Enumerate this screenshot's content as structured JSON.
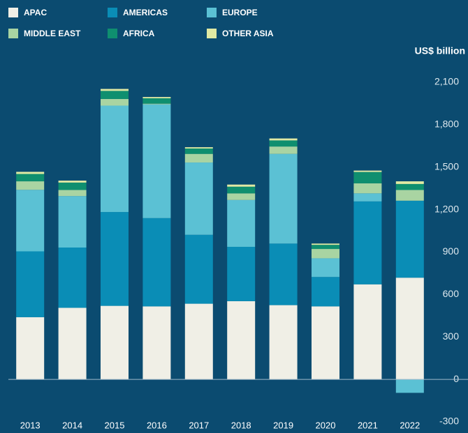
{
  "chart_data": {
    "type": "stacked_bar",
    "y_axis_label": "US$ billion",
    "categories": [
      "2013",
      "2014",
      "2015",
      "2016",
      "2017",
      "2018",
      "2019",
      "2020",
      "2021",
      "2022"
    ],
    "series": [
      {
        "name": "APAC",
        "color": "#f0efe6",
        "values": [
          440,
          506,
          520,
          516,
          535,
          553,
          525,
          516,
          672,
          719
        ]
      },
      {
        "name": "AMERICAS",
        "color": "#0a8db6",
        "values": [
          465,
          426,
          663,
          624,
          487,
          384,
          435,
          208,
          586,
          544
        ]
      },
      {
        "name": "EUROPE",
        "color": "#5bc1d4",
        "values": [
          435,
          364,
          752,
          804,
          511,
          331,
          634,
          132,
          57,
          -95
        ]
      },
      {
        "name": "MIDDLE EAST",
        "color": "#a9d4a2",
        "values": [
          60,
          43,
          47,
          5,
          61,
          47,
          52,
          66,
          71,
          76
        ]
      },
      {
        "name": "AFRICA",
        "color": "#0f8f6f",
        "values": [
          52,
          52,
          57,
          38,
          38,
          47,
          43,
          29,
          80,
          42
        ]
      },
      {
        "name": "OTHER ASIA",
        "color": "#e0e9a3",
        "values": [
          15,
          14,
          14,
          9,
          9,
          15,
          14,
          9,
          10,
          19
        ]
      }
    ],
    "ylim": [
      -300,
      2100
    ],
    "yticks": [
      -300,
      0,
      300,
      600,
      900,
      {
        "value": 1200,
        "label": "1,200"
      },
      {
        "value": 1500,
        "label": "1,500"
      },
      {
        "value": 1800,
        "label": "1,800"
      },
      {
        "value": 2100,
        "label": "2,100"
      }
    ],
    "legend": "top-left"
  }
}
